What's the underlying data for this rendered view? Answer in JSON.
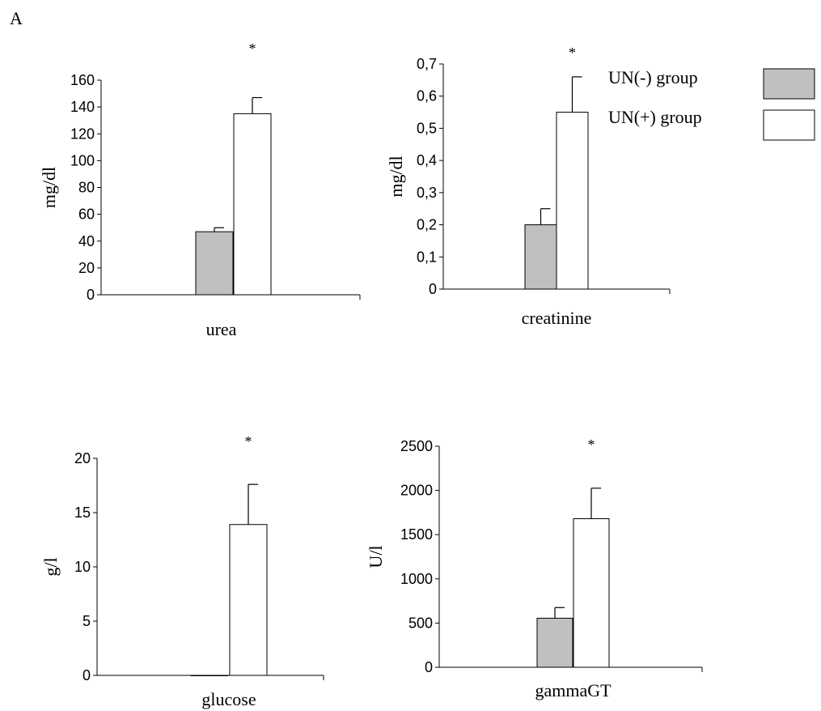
{
  "panel_label": "A",
  "legend": {
    "entries": [
      {
        "label": "UN(-) group",
        "color": "#c0c0c0"
      },
      {
        "label": "UN(+) group",
        "color": "#ffffff"
      }
    ]
  },
  "chart_data": [
    {
      "type": "bar",
      "categories": [
        "urea"
      ],
      "xlabel": "urea",
      "ylabel": "mg/dl",
      "ylim": [
        0,
        160
      ],
      "yticks": [
        "0",
        "20",
        "40",
        "60",
        "80",
        "100",
        "120",
        "140",
        "160"
      ],
      "series": [
        {
          "name": "UN(-) group",
          "values": [
            47
          ],
          "errors": [
            3
          ]
        },
        {
          "name": "UN(+) group",
          "values": [
            135
          ],
          "errors": [
            12
          ]
        }
      ],
      "annotation": "*"
    },
    {
      "type": "bar",
      "categories": [
        "creatinine"
      ],
      "xlabel": "creatinine",
      "ylabel": "mg/dl",
      "ylim": [
        0,
        0.7
      ],
      "yticks": [
        "0",
        "0,1",
        "0,2",
        "0,3",
        "0,4",
        "0,5",
        "0,6",
        "0,7"
      ],
      "series": [
        {
          "name": "UN(-) group",
          "values": [
            0.2
          ],
          "errors": [
            0.05
          ]
        },
        {
          "name": "UN(+) group",
          "values": [
            0.55
          ],
          "errors": [
            0.11
          ]
        }
      ],
      "annotation": "*"
    },
    {
      "type": "bar",
      "categories": [
        "glucose"
      ],
      "xlabel": "glucose",
      "ylabel": "g/l",
      "ylim": [
        0,
        20
      ],
      "yticks": [
        "0",
        "5",
        "10",
        "15",
        "20"
      ],
      "series": [
        {
          "name": "UN(-) group",
          "values": [
            0
          ],
          "errors": [
            0
          ]
        },
        {
          "name": "UN(+) group",
          "values": [
            13.9
          ],
          "errors": [
            3.7
          ]
        }
      ],
      "annotation": "*"
    },
    {
      "type": "bar",
      "categories": [
        "gammaGT"
      ],
      "xlabel": "gammaGT",
      "ylabel": "U/l",
      "ylim": [
        0,
        2500
      ],
      "yticks": [
        "0",
        "500",
        "1000",
        "1500",
        "2000",
        "2500"
      ],
      "series": [
        {
          "name": "UN(-) group",
          "values": [
            555
          ],
          "errors": [
            120
          ]
        },
        {
          "name": "UN(+) group",
          "values": [
            1680
          ],
          "errors": [
            345
          ]
        }
      ],
      "annotation": "*"
    }
  ]
}
